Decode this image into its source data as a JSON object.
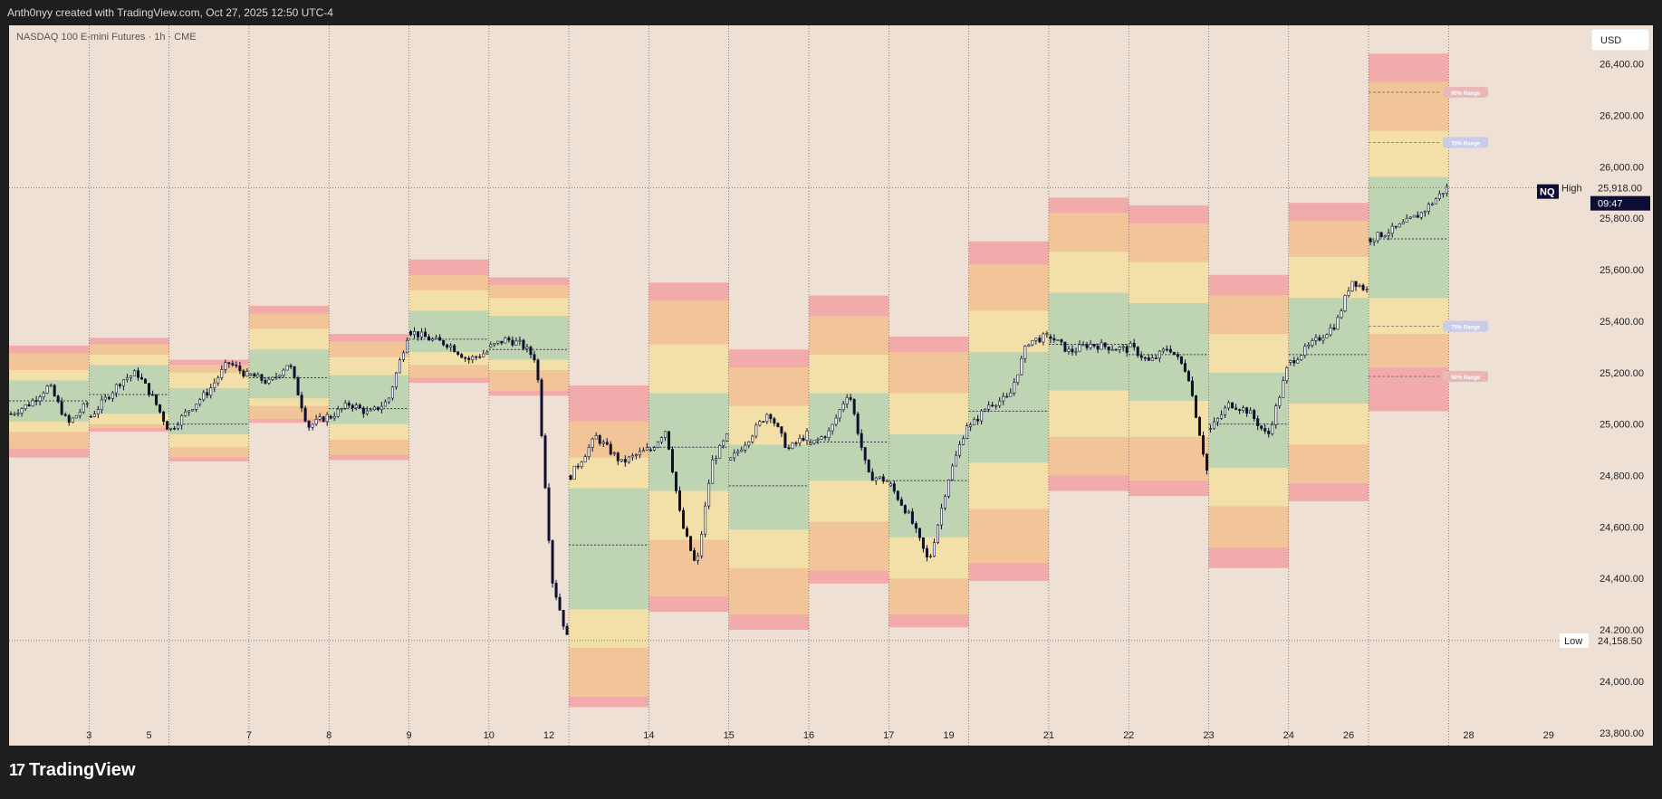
{
  "header": {
    "attribution": "Anth0nyy created with TradingView.com, Oct 27, 2025 12:50 UTC-4"
  },
  "footer": {
    "brand": "TradingView",
    "brand_icon": "tradingview-logo-icon"
  },
  "colors": {
    "background": "#efe0d6",
    "green": "#bfd4b3",
    "yellow": "#f2e0a8",
    "orange": "#f2c598",
    "red": "#f2abab",
    "candle": "#0f0f2e",
    "price_tag": "#0d0d33"
  },
  "chart_data": {
    "type": "candlestick",
    "title": "NASDAQ 100 E-mini Futures · 1h · CME",
    "currency": "USD",
    "symbol": "NQ",
    "ylim": [
      23750,
      26550
    ],
    "y_ticks": [
      "26,400.00",
      "26,200.00",
      "26,000.00",
      "25,800.00",
      "25,600.00",
      "25,400.00",
      "25,200.00",
      "25,000.00",
      "24,800.00",
      "24,600.00",
      "24,400.00",
      "24,200.00",
      "24,000.00",
      "23,800.00"
    ],
    "x_labels": [
      {
        "label": "3",
        "t": 1.0
      },
      {
        "label": "5",
        "t": 1.75
      },
      {
        "label": "7",
        "t": 3.0
      },
      {
        "label": "8",
        "t": 4.0
      },
      {
        "label": "9",
        "t": 5.0
      },
      {
        "label": "10",
        "t": 6.0
      },
      {
        "label": "12",
        "t": 6.75
      },
      {
        "label": "14",
        "t": 8.0
      },
      {
        "label": "15",
        "t": 9.0
      },
      {
        "label": "16",
        "t": 10.0
      },
      {
        "label": "17",
        "t": 11.0
      },
      {
        "label": "19",
        "t": 11.75
      },
      {
        "label": "21",
        "t": 13.0
      },
      {
        "label": "22",
        "t": 14.0
      },
      {
        "label": "23",
        "t": 15.0
      },
      {
        "label": "24",
        "t": 16.0
      },
      {
        "label": "26",
        "t": 16.75
      },
      {
        "label": "28",
        "t": 18.25
      },
      {
        "label": "29",
        "t": 19.25
      }
    ],
    "high": {
      "label": "High",
      "value": "25,918.00",
      "price": 25918
    },
    "low": {
      "label": "Low",
      "value": "24,158.50",
      "price": 24158.5
    },
    "current": {
      "symbol": "NQ",
      "price": "25,918.00",
      "countdown": "09:47"
    },
    "range_labels": [
      {
        "text": "90% Range",
        "price": 26290
      },
      {
        "text": "75% Range",
        "price": 26095
      },
      {
        "text": "75% Range",
        "price": 25380
      },
      {
        "text": "90% Range",
        "price": 25185
      }
    ],
    "sessions": [
      {
        "mid": 25090,
        "g": [
          25010,
          25170
        ],
        "y": [
          24970,
          25210
        ],
        "o": [
          24905,
          25275
        ],
        "r": [
          24870,
          25305
        ],
        "path": [
          25040,
          25080,
          25150,
          25000,
          25080
        ]
      },
      {
        "mid": 25115,
        "g": [
          25040,
          25230
        ],
        "y": [
          25000,
          25270
        ],
        "o": [
          24985,
          25310
        ],
        "r": [
          24970,
          25335
        ],
        "path": [
          25030,
          25100,
          25170,
          25200,
          25110,
          24990
        ]
      },
      {
        "mid": 25000,
        "g": [
          24960,
          25140
        ],
        "y": [
          24910,
          25200
        ],
        "o": [
          24870,
          25230
        ],
        "r": [
          24855,
          25250
        ],
        "path": [
          24980,
          25060,
          25130,
          25240,
          25190
        ]
      },
      {
        "mid": 25180,
        "g": [
          25100,
          25290
        ],
        "y": [
          25070,
          25370
        ],
        "o": [
          25020,
          25430
        ],
        "r": [
          25005,
          25460
        ],
        "path": [
          25190,
          25160,
          25240,
          24990,
          25030
        ]
      },
      {
        "mid": 25060,
        "g": [
          25000,
          25190
        ],
        "y": [
          24940,
          25260
        ],
        "o": [
          24880,
          25320
        ],
        "r": [
          24860,
          25350
        ],
        "path": [
          25030,
          25080,
          25040,
          25090,
          25340
        ]
      },
      {
        "mid": 25330,
        "g": [
          25280,
          25440
        ],
        "y": [
          25230,
          25520
        ],
        "o": [
          25180,
          25580
        ],
        "r": [
          25160,
          25640
        ],
        "path": [
          25360,
          25330,
          25310,
          25250,
          25280
        ]
      },
      {
        "mid": 25290,
        "g": [
          25250,
          25420
        ],
        "y": [
          25210,
          25490
        ],
        "o": [
          25130,
          25540
        ],
        "r": [
          25110,
          25570
        ],
        "path": [
          25300,
          25330,
          25310,
          25250,
          24400,
          24170
        ]
      },
      {
        "mid": 24530,
        "g": [
          24280,
          24750
        ],
        "y": [
          24130,
          24870
        ],
        "o": [
          23940,
          25010
        ],
        "r": [
          23900,
          25150
        ],
        "path": [
          24800,
          24950,
          24850,
          24900
        ]
      },
      {
        "mid": 24910,
        "g": [
          24740,
          25120
        ],
        "y": [
          24550,
          25310
        ],
        "o": [
          24330,
          25480
        ],
        "r": [
          24270,
          25550
        ],
        "path": [
          24900,
          24980,
          24620,
          24440,
          24850,
          24950
        ]
      },
      {
        "mid": 24760,
        "g": [
          24590,
          24920
        ],
        "y": [
          24440,
          25070
        ],
        "o": [
          24260,
          25220
        ],
        "r": [
          24200,
          25290
        ],
        "path": [
          24860,
          24950,
          25050,
          24900,
          24960
        ]
      },
      {
        "mid": 24930,
        "g": [
          24780,
          25120
        ],
        "y": [
          24620,
          25270
        ],
        "o": [
          24430,
          25420
        ],
        "r": [
          24380,
          25500
        ],
        "path": [
          24920,
          24970,
          25130,
          24800,
          24780
        ]
      },
      {
        "mid": 24780,
        "g": [
          24560,
          24960
        ],
        "y": [
          24400,
          25120
        ],
        "o": [
          24260,
          25280
        ],
        "r": [
          24210,
          25340
        ],
        "path": [
          24760,
          24640,
          24460,
          24780,
          25000
        ]
      },
      {
        "mid": 25050,
        "g": [
          24850,
          25280
        ],
        "y": [
          24670,
          25440
        ],
        "o": [
          24460,
          25620
        ],
        "r": [
          24390,
          25710
        ],
        "path": [
          24990,
          25080,
          25100,
          25320,
          25340
        ]
      },
      {
        "mid": 25310,
        "g": [
          25130,
          25510
        ],
        "y": [
          24950,
          25670
        ],
        "o": [
          24800,
          25820
        ],
        "r": [
          24740,
          25880
        ],
        "path": [
          25340,
          25280,
          25310,
          25300,
          25290
        ]
      },
      {
        "mid": 25270,
        "g": [
          25090,
          25470
        ],
        "y": [
          24950,
          25630
        ],
        "o": [
          24780,
          25780
        ],
        "r": [
          24720,
          25850
        ],
        "path": [
          25300,
          25240,
          25300,
          25200,
          24820
        ]
      },
      {
        "mid": 25000,
        "g": [
          24830,
          25200
        ],
        "y": [
          24680,
          25350
        ],
        "o": [
          24520,
          25500
        ],
        "r": [
          24440,
          25580
        ],
        "path": [
          24980,
          25080,
          25050,
          24950,
          25210
        ]
      },
      {
        "mid": 25270,
        "g": [
          25080,
          25490
        ],
        "y": [
          24920,
          25650
        ],
        "o": [
          24770,
          25790
        ],
        "r": [
          24700,
          25860
        ],
        "path": [
          25240,
          25290,
          25340,
          25390,
          25560,
          25520
        ]
      },
      {
        "mid": 25720,
        "g": [
          25490,
          25960
        ],
        "y": [
          25350,
          26140
        ],
        "o": [
          25220,
          26330
        ],
        "r": [
          25050,
          26440
        ],
        "path": [
          25720,
          25760,
          25820,
          25918
        ]
      }
    ]
  }
}
